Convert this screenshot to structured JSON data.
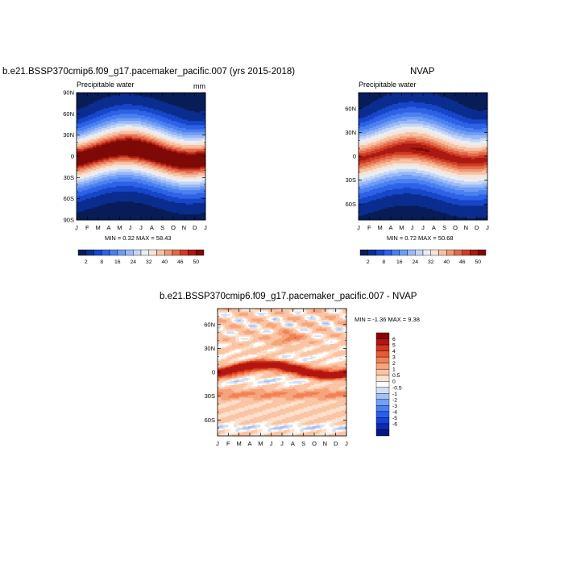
{
  "palette_abs": [
    "#081d58",
    "#0b2d8f",
    "#1746c9",
    "#2f62e6",
    "#4a80f0",
    "#6e9cf5",
    "#9ab8f7",
    "#c4d6f5",
    "#e9eef6",
    "#f7e4d6",
    "#f6c2a5",
    "#f09874",
    "#e36a4a",
    "#cf3c25",
    "#ab1a12",
    "#7d0a06"
  ],
  "palette_diff": [
    "#061880",
    "#0a2ab2",
    "#1543d6",
    "#2a60ee",
    "#4b80f3",
    "#759ff5",
    "#a3c0f6",
    "#d1e0f7",
    "#ffffff",
    "#fde1cc",
    "#fbc4a4",
    "#f7a57c",
    "#f08257",
    "#e65a36",
    "#d2361d",
    "#b31610",
    "#8a0605"
  ],
  "panels": [
    {
      "title": "b.e21.BSSP370cmip6.f09_g17.pacemaker_pacific.007 (yrs 2015-2018)",
      "left_label": "Precipitable water",
      "right_label": "mm",
      "lat_ticks": [
        "90N",
        "60N",
        "30N",
        "0",
        "30S",
        "60S",
        "90S"
      ],
      "month_ticks": [
        "J",
        "F",
        "M",
        "A",
        "M",
        "J",
        "J",
        "A",
        "S",
        "O",
        "N",
        "D",
        "J"
      ],
      "stats": "MIN =   0.32 MAX =  58.43",
      "colorbar_labels": [
        "2",
        "8",
        "16",
        "24",
        "32",
        "40",
        "46",
        "50"
      ]
    },
    {
      "title": "NVAP",
      "left_label": "Precipitable water",
      "right_label": "",
      "lat_ticks": [
        "60N",
        "30N",
        "0",
        "30S",
        "60S"
      ],
      "month_ticks": [
        "J",
        "F",
        "M",
        "A",
        "M",
        "J",
        "J",
        "A",
        "S",
        "O",
        "N",
        "D",
        "J"
      ],
      "stats": "MIN =   0.72 MAX =  50.68",
      "colorbar_labels": [
        "2",
        "8",
        "16",
        "24",
        "32",
        "40",
        "46",
        "50"
      ]
    },
    {
      "title": "b.e21.BSSP370cmip6.f09_g17.pacemaker_pacific.007 - NVAP",
      "lat_ticks": [
        "60N",
        "30N",
        "0",
        "30S",
        "60S"
      ],
      "month_ticks": [
        "J",
        "F",
        "M",
        "A",
        "M",
        "J",
        "J",
        "A",
        "S",
        "O",
        "N",
        "D",
        "J"
      ],
      "stats": "MIN =  -1.36 MAX =   9.38",
      "colorbar_labels": [
        "6",
        "5",
        "4",
        "3",
        "2",
        "1",
        "0.5",
        "0",
        "-0.5",
        "-1",
        "-2",
        "-3",
        "-4",
        "-5",
        "-6"
      ]
    }
  ],
  "chart_data": [
    {
      "type": "heatmap",
      "title": "b.e21.BSSP370cmip6.f09_g17.pacemaker_pacific.007 (yrs 2015-2018)",
      "variable": "Precipitable water",
      "units": "mm",
      "x": [
        "J",
        "F",
        "M",
        "A",
        "M",
        "J",
        "J",
        "A",
        "S",
        "O",
        "N",
        "D",
        "J"
      ],
      "y_range": [
        -90,
        90
      ],
      "min": 0.32,
      "max": 58.43,
      "levels": [
        2,
        5,
        8,
        12,
        16,
        20,
        24,
        28,
        32,
        36,
        40,
        43,
        46,
        48,
        50
      ]
    },
    {
      "type": "heatmap",
      "title": "NVAP",
      "variable": "Precipitable water",
      "x": [
        "J",
        "F",
        "M",
        "A",
        "M",
        "J",
        "J",
        "A",
        "S",
        "O",
        "N",
        "D",
        "J"
      ],
      "y_range": [
        -80,
        80
      ],
      "min": 0.72,
      "max": 50.68,
      "levels": [
        2,
        5,
        8,
        12,
        16,
        20,
        24,
        28,
        32,
        36,
        40,
        43,
        46,
        48,
        50
      ]
    },
    {
      "type": "heatmap",
      "title": "b.e21.BSSP370cmip6.f09_g17.pacemaker_pacific.007 - NVAP",
      "x": [
        "J",
        "F",
        "M",
        "A",
        "M",
        "J",
        "J",
        "A",
        "S",
        "O",
        "N",
        "D",
        "J"
      ],
      "y_range": [
        -80,
        80
      ],
      "min": -1.36,
      "max": 9.38,
      "levels": [
        -6,
        -5,
        -4,
        -3,
        -2,
        -1,
        -0.5,
        0,
        0.5,
        1,
        2,
        3,
        4,
        5,
        6
      ]
    }
  ]
}
